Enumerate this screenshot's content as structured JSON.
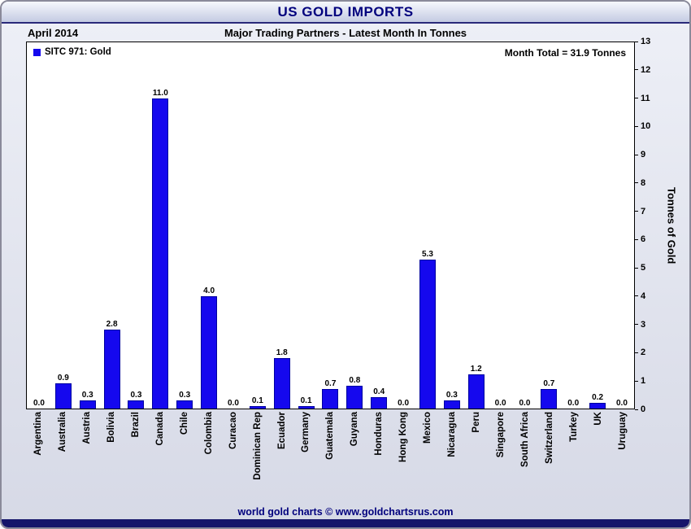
{
  "window": {
    "title": "US GOLD IMPORTS",
    "date_label": "April 2014",
    "subtitle": "Major Trading Partners - Latest Month In Tonnes",
    "footer_credit": "world gold charts © www.goldchartsrus.com"
  },
  "colors": {
    "bar": "#1508ee",
    "title_navy": "#00007d",
    "bottom_bar": "#15156a"
  },
  "chart_data": {
    "type": "bar",
    "title": "US GOLD IMPORTS",
    "subtitle": "Major Trading Partners - Latest Month In Tonnes",
    "legend": "SITC 971: Gold",
    "annotation": "Month Total = 31.9 Tonnes",
    "ylabel": "Tonnes of Gold",
    "xlabel": "",
    "ylim": [
      0,
      13
    ],
    "yticks": [
      0,
      1,
      2,
      3,
      4,
      5,
      6,
      7,
      8,
      9,
      10,
      11,
      12,
      13
    ],
    "grid": false,
    "legend_position": "top-left",
    "categories": [
      "Argentina",
      "Australia",
      "Austria",
      "Bolivia",
      "Brazil",
      "Canada",
      "Chile",
      "Colombia",
      "Curacao",
      "Dominican Rep",
      "Ecuador",
      "Germany",
      "Guatemala",
      "Guyana",
      "Honduras",
      "Hong Kong",
      "Mexico",
      "Nicaragua",
      "Peru",
      "Singapore",
      "South Africa",
      "Switzerland",
      "Turkey",
      "UK",
      "Uruguay"
    ],
    "values": [
      0.0,
      0.9,
      0.3,
      2.8,
      0.3,
      11.0,
      0.3,
      4.0,
      0.0,
      0.1,
      1.8,
      0.1,
      0.7,
      0.8,
      0.4,
      0.0,
      5.3,
      0.3,
      1.2,
      0.0,
      0.0,
      0.7,
      0.0,
      0.2,
      0.0
    ]
  }
}
